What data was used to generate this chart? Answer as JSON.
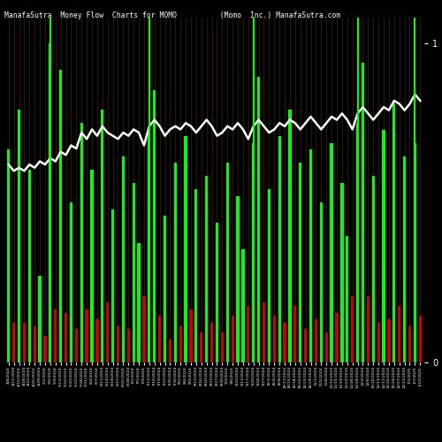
{
  "title": "ManafaSutra  Money Flow  Charts for MOMO          (Momo  Inc.) ManafaSutra.com",
  "background_color": "#000000",
  "line_color": "#ffffff",
  "bar_values": [
    320,
    60,
    380,
    60,
    290,
    55,
    130,
    40,
    480,
    80,
    440,
    75,
    240,
    50,
    360,
    80,
    290,
    65,
    380,
    90,
    230,
    55,
    310,
    50,
    270,
    180,
    100,
    350,
    410,
    70,
    220,
    35,
    300,
    55,
    340,
    80,
    260,
    45,
    280,
    60,
    210,
    45,
    300,
    70,
    250,
    170,
    85,
    330,
    430,
    90,
    260,
    70,
    340,
    60,
    380,
    85,
    300,
    50,
    320,
    65,
    240,
    45,
    330,
    75,
    270,
    190,
    100,
    360,
    450,
    100,
    280,
    60,
    350,
    65,
    390,
    85,
    310,
    55,
    330,
    70
  ],
  "bar_colors": [
    "g",
    "r",
    "g",
    "r",
    "g",
    "r",
    "g",
    "r",
    "g",
    "r",
    "g",
    "r",
    "g",
    "r",
    "g",
    "r",
    "g",
    "r",
    "g",
    "r",
    "g",
    "r",
    "g",
    "r",
    "g",
    "g",
    "r",
    "g",
    "g",
    "r",
    "g",
    "r",
    "g",
    "r",
    "g",
    "r",
    "g",
    "r",
    "g",
    "r",
    "g",
    "r",
    "g",
    "r",
    "g",
    "g",
    "r",
    "g",
    "g",
    "r",
    "g",
    "r",
    "g",
    "r",
    "g",
    "r",
    "g",
    "r",
    "g",
    "r",
    "g",
    "r",
    "g",
    "r",
    "g",
    "g",
    "r",
    "g",
    "g",
    "r",
    "g",
    "r",
    "g",
    "r",
    "g",
    "r",
    "g",
    "r",
    "g",
    "r"
  ],
  "line_values": [
    0.62,
    0.6,
    0.61,
    0.6,
    0.62,
    0.61,
    0.63,
    0.62,
    0.64,
    0.63,
    0.66,
    0.65,
    0.68,
    0.67,
    0.72,
    0.7,
    0.73,
    0.71,
    0.74,
    0.72,
    0.71,
    0.7,
    0.72,
    0.71,
    0.73,
    0.72,
    0.68,
    0.74,
    0.76,
    0.74,
    0.71,
    0.73,
    0.74,
    0.73,
    0.75,
    0.74,
    0.72,
    0.74,
    0.76,
    0.74,
    0.71,
    0.72,
    0.74,
    0.73,
    0.75,
    0.73,
    0.7,
    0.74,
    0.76,
    0.74,
    0.72,
    0.73,
    0.75,
    0.74,
    0.76,
    0.75,
    0.73,
    0.75,
    0.77,
    0.75,
    0.73,
    0.75,
    0.77,
    0.76,
    0.78,
    0.76,
    0.73,
    0.78,
    0.8,
    0.78,
    0.76,
    0.78,
    0.8,
    0.79,
    0.82,
    0.81,
    0.79,
    0.81,
    0.84,
    0.82
  ],
  "xlabels": [
    "4/8/2024",
    "4/11/2024",
    "4/15/2024",
    "4/18/2024",
    "4/22/2024",
    "4/25/2024",
    "4/29/2024",
    "5/2/2024",
    "5/6/2024",
    "5/9/2024",
    "5/13/2024",
    "5/16/2024",
    "5/20/2024",
    "5/23/2024",
    "5/28/2024",
    "5/31/2024",
    "6/4/2024",
    "6/7/2024",
    "6/11/2024",
    "6/14/2024",
    "6/18/2024",
    "6/21/2024",
    "6/25/2024",
    "6/28/2024",
    "7/2/2024",
    "7/5/2024",
    "7/9/2024",
    "7/12/2024",
    "7/16/2024",
    "7/19/2024",
    "7/23/2024",
    "7/26/2024",
    "7/30/2024",
    "8/2/2024",
    "8/6/2024",
    "8/9/2024",
    "8/13/2024",
    "8/16/2024",
    "8/20/2024",
    "8/23/2024",
    "8/27/2024",
    "8/30/2024",
    "9/3/2024",
    "9/6/2024",
    "9/10/2024",
    "9/13/2024",
    "9/17/2024",
    "9/20/2024",
    "9/24/2024",
    "9/27/2024",
    "10/1/2024",
    "10/4/2024",
    "10/8/2024",
    "10/11/2024",
    "10/15/2024",
    "10/18/2024",
    "10/22/2024",
    "10/25/2024",
    "10/29/2024",
    "11/1/2024",
    "11/5/2024",
    "11/8/2024",
    "11/12/2024",
    "11/15/2024",
    "11/19/2024",
    "11/22/2024",
    "11/26/2024",
    "11/29/2024",
    "12/3/2024",
    "12/6/2024",
    "12/10/2024",
    "12/13/2024",
    "12/17/2024",
    "12/20/2024",
    "12/24/2024",
    "12/27/2024",
    "12/31/2024",
    "1/3/2025",
    "1/7/2025",
    "1/10/2025"
  ],
  "vline_positions": [
    8,
    27,
    47,
    67,
    78
  ],
  "right_yticks": [
    0.0,
    1.0
  ],
  "right_yticklabels": [
    "0",
    "1"
  ],
  "figsize": [
    5.0,
    5.0
  ],
  "dpi": 100
}
